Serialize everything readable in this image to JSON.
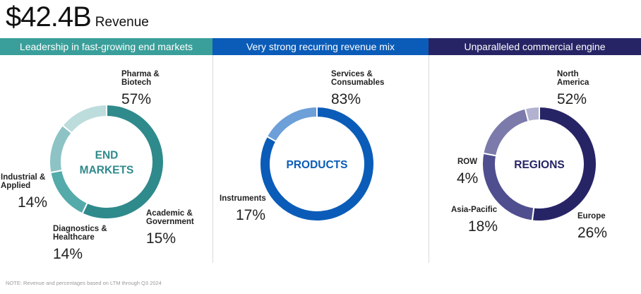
{
  "headline": {
    "value": "$42.4B",
    "label": "Revenue"
  },
  "footnote": "NOTE: Revenue and percentages based on LTM through Q3 2024",
  "chart_data": [
    {
      "type": "pie",
      "band_title": "Leadership in fast-growing end markets",
      "band_color": "#3a9f9a",
      "center_label": [
        "END",
        "MARKETS"
      ],
      "center_color": "#2f8a8c",
      "slices": [
        {
          "name": [
            "Pharma &",
            "Biotech"
          ],
          "value": 57,
          "label": "57%",
          "color": "#2f8a8c"
        },
        {
          "name": [
            "Academic &",
            "Government"
          ],
          "value": 15,
          "label": "15%",
          "color": "#55aaaa"
        },
        {
          "name": [
            "Diagnostics &",
            "Healthcare"
          ],
          "value": 14,
          "label": "14%",
          "color": "#8dc3c4"
        },
        {
          "name": [
            "Industrial &",
            "Applied"
          ],
          "value": 14,
          "label": "14%",
          "color": "#bddcdc"
        }
      ]
    },
    {
      "type": "pie",
      "band_title": "Very strong recurring revenue mix",
      "band_color": "#0b5cb8",
      "center_label": [
        "PRODUCTS"
      ],
      "center_color": "#0b5cb8",
      "slices": [
        {
          "name": [
            "Services &",
            "Consumables"
          ],
          "value": 83,
          "label": "83%",
          "color": "#0b5cb8"
        },
        {
          "name": [
            "Instruments"
          ],
          "value": 17,
          "label": "17%",
          "color": "#6d9fd8"
        }
      ]
    },
    {
      "type": "pie",
      "band_title": "Unparalleled commercial engine",
      "band_color": "#272466",
      "center_label": [
        "REGIONS"
      ],
      "center_color": "#272466",
      "slices": [
        {
          "name": [
            "North",
            "America"
          ],
          "value": 52,
          "label": "52%",
          "color": "#272466"
        },
        {
          "name": [
            "Europe"
          ],
          "value": 26,
          "label": "26%",
          "color": "#4f4e8e"
        },
        {
          "name": [
            "Asia-Pacific"
          ],
          "value": 18,
          "label": "18%",
          "color": "#7b7aaa"
        },
        {
          "name": [
            "ROW"
          ],
          "value": 4,
          "label": "4%",
          "color": "#b2b2d0"
        }
      ]
    }
  ]
}
